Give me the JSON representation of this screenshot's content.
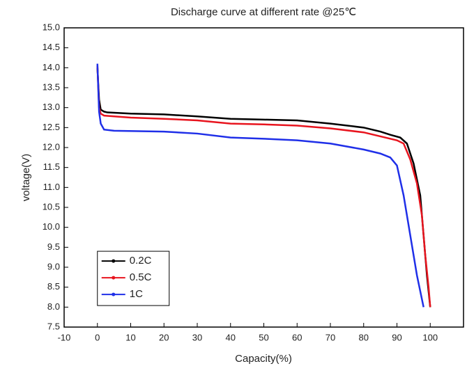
{
  "chart_data": {
    "type": "line",
    "title": "Discharge curve at different rate @25℃",
    "x_label": "Capacity(%)",
    "y_label": "voltage(V)",
    "xlim": [
      -10,
      110
    ],
    "xticks": [
      -10,
      0,
      10,
      20,
      30,
      40,
      50,
      60,
      70,
      80,
      90,
      100
    ],
    "ylim": [
      7.5,
      15
    ],
    "yticks": [
      7.5,
      {
        "value": 8,
        "label": "8.0"
      },
      8.5,
      {
        "value": 9,
        "label": "9.0"
      },
      9.5,
      {
        "value": 10,
        "label": "10.0"
      },
      10.5,
      {
        "value": 11,
        "label": "11.0"
      },
      11.5,
      {
        "value": 12,
        "label": "12.0"
      },
      12.5,
      {
        "value": 13,
        "label": "13.0"
      },
      13.5,
      {
        "value": 14,
        "label": "14.0"
      },
      14.5,
      {
        "value": 15,
        "label": "15.0"
      }
    ],
    "grid": false,
    "legend": "lower left",
    "series": [
      {
        "name": "0.2C",
        "color": "#000000",
        "x": [
          0,
          0.5,
          1,
          2,
          3,
          10,
          20,
          30,
          35,
          40,
          50,
          60,
          70,
          80,
          85,
          88,
          91,
          93,
          95,
          97,
          98,
          99,
          100
        ],
        "values": [
          14.0,
          13.2,
          12.95,
          12.9,
          12.88,
          12.85,
          12.83,
          12.78,
          12.75,
          12.72,
          12.7,
          12.68,
          12.6,
          12.5,
          12.4,
          12.32,
          12.25,
          12.1,
          11.6,
          10.8,
          9.8,
          8.8,
          8.0
        ]
      },
      {
        "name": "0.5C",
        "color": "#e8141e",
        "x": [
          0,
          0.5,
          1,
          2,
          10,
          20,
          30,
          40,
          50,
          60,
          70,
          80,
          85,
          90,
          92,
          94,
          96,
          97.5,
          98.5,
          99.5,
          100
        ],
        "values": [
          14.05,
          13.0,
          12.85,
          12.8,
          12.75,
          12.72,
          12.68,
          12.6,
          12.58,
          12.55,
          12.48,
          12.38,
          12.28,
          12.18,
          12.1,
          11.7,
          11.1,
          10.3,
          9.3,
          8.5,
          8.0
        ]
      },
      {
        "name": "1C",
        "color": "#1f2fe8",
        "x": [
          0,
          0.5,
          1,
          2,
          5,
          20,
          30,
          40,
          50,
          60,
          70,
          80,
          85,
          88,
          90,
          92,
          94,
          96,
          98
        ],
        "values": [
          14.1,
          12.9,
          12.6,
          12.45,
          12.42,
          12.4,
          12.35,
          12.25,
          12.22,
          12.18,
          12.1,
          11.95,
          11.85,
          11.75,
          11.55,
          10.8,
          9.8,
          8.8,
          8.0
        ]
      }
    ]
  }
}
